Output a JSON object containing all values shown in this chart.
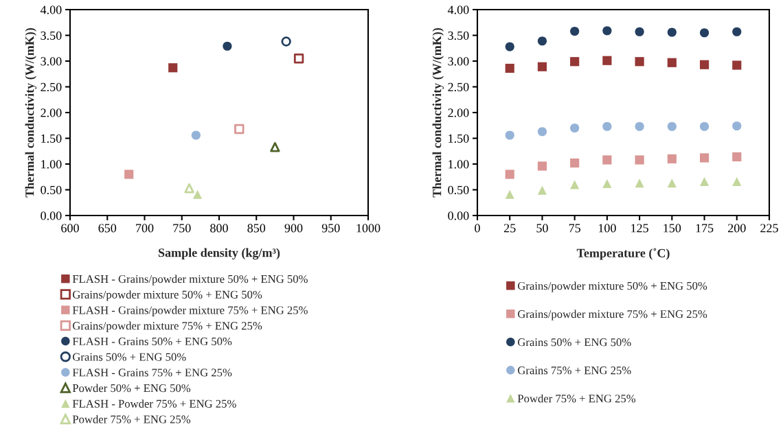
{
  "chart_data": [
    {
      "type": "scatter",
      "xlabel": "Sample density (kg/m³)",
      "ylabel": "Thermal conductivity (W/(mK))",
      "xlim": [
        600,
        1000
      ],
      "xticks": [
        600,
        650,
        700,
        750,
        800,
        850,
        900,
        950,
        1000
      ],
      "ylim": [
        0,
        4
      ],
      "yticks": [
        {
          "value": 0,
          "label": "0.00"
        },
        {
          "value": 0.5,
          "label": "0.50"
        },
        {
          "value": 1,
          "label": "1.00"
        },
        {
          "value": 1.5,
          "label": "1.50"
        },
        {
          "value": 2,
          "label": "2.00"
        },
        {
          "value": 2.5,
          "label": "2.50"
        },
        {
          "value": 3,
          "label": "3.00"
        },
        {
          "value": 3.5,
          "label": "3.50"
        },
        {
          "value": 4,
          "label": "4.00"
        }
      ],
      "grid": false,
      "legend": "bottom",
      "series": [
        {
          "name": "FLASH - Grains/powder mixture 50% + ENG 50%",
          "color": "#953735",
          "marker": "square",
          "x": [
            738
          ],
          "values": [
            2.87
          ]
        },
        {
          "name": "Grains/powder mixture 50% + ENG 50%",
          "color": "#953735",
          "marker": "square-open",
          "x": [
            907
          ],
          "values": [
            3.05
          ]
        },
        {
          "name": "FLASH - Grains/powder mixture 75% + ENG 25%",
          "color": "#d99694",
          "marker": "square",
          "x": [
            679
          ],
          "values": [
            0.8
          ]
        },
        {
          "name": "Grains/powder mixture 75% + ENG 25%",
          "color": "#d99694",
          "marker": "square-open",
          "x": [
            827
          ],
          "values": [
            1.68
          ]
        },
        {
          "name": "FLASH - Grains 50% + ENG 50%",
          "color": "#243f60",
          "marker": "circle",
          "x": [
            811
          ],
          "values": [
            3.29
          ]
        },
        {
          "name": "Grains 50% + ENG 50%",
          "color": "#243f60",
          "marker": "circle-open",
          "x": [
            890
          ],
          "values": [
            3.38
          ]
        },
        {
          "name": "FLASH - Grains 75% + ENG 25%",
          "color": "#95b3d7",
          "marker": "circle",
          "x": [
            769
          ],
          "values": [
            1.56
          ]
        },
        {
          "name": "Powder 50% + ENG 50%",
          "color": "#4f6228",
          "marker": "triangle-open",
          "x": [
            875
          ],
          "values": [
            1.33
          ]
        },
        {
          "name": "FLASH - Powder 75% + ENG 25%",
          "color": "#c3d69b",
          "marker": "triangle",
          "x": [
            771
          ],
          "values": [
            0.41
          ]
        },
        {
          "name": "Powder 75% + ENG 25%",
          "color": "#c3d69b",
          "marker": "triangle-open",
          "x": [
            760
          ],
          "values": [
            0.53
          ]
        }
      ]
    },
    {
      "type": "scatter",
      "xlabel": "Temperature (˚C)",
      "ylabel": "Thermal conductivity (W/(mK))",
      "xlim": [
        0,
        225
      ],
      "xticks": [
        0,
        25,
        50,
        75,
        100,
        125,
        150,
        175,
        200,
        225
      ],
      "ylim": [
        0,
        4
      ],
      "yticks": [
        {
          "value": 0,
          "label": "0.00"
        },
        {
          "value": 0.5,
          "label": "0.50"
        },
        {
          "value": 1,
          "label": "1.00"
        },
        {
          "value": 1.5,
          "label": "1.50"
        },
        {
          "value": 2,
          "label": "2.00"
        },
        {
          "value": 2.5,
          "label": "2.50"
        },
        {
          "value": 3,
          "label": "3.00"
        },
        {
          "value": 3.5,
          "label": "3.50"
        },
        {
          "value": 4,
          "label": "4.00"
        }
      ],
      "grid": false,
      "legend": "bottom",
      "x": [
        25,
        50,
        75,
        100,
        125,
        150,
        175,
        200
      ],
      "series": [
        {
          "name": "Grains/powder mixture 50% + ENG 50%",
          "color": "#953735",
          "marker": "square",
          "values": [
            2.86,
            2.89,
            2.99,
            3.01,
            2.99,
            2.97,
            2.93,
            2.92
          ]
        },
        {
          "name": "Grains/powder mixture 75% + ENG 25%",
          "color": "#d99694",
          "marker": "square",
          "values": [
            0.8,
            0.96,
            1.02,
            1.08,
            1.08,
            1.1,
            1.12,
            1.14
          ]
        },
        {
          "name": "Grains 50% + ENG 50%",
          "color": "#243f60",
          "marker": "circle",
          "values": [
            3.28,
            3.39,
            3.58,
            3.59,
            3.57,
            3.56,
            3.55,
            3.57
          ]
        },
        {
          "name": "Grains 75% + ENG 25%",
          "color": "#95b3d7",
          "marker": "circle",
          "values": [
            1.56,
            1.63,
            1.7,
            1.73,
            1.73,
            1.73,
            1.73,
            1.74
          ]
        },
        {
          "name": "Powder 75% + ENG 25%",
          "color": "#c3d69b",
          "marker": "triangle",
          "values": [
            0.41,
            0.49,
            0.6,
            0.62,
            0.63,
            0.63,
            0.66,
            0.66
          ]
        }
      ]
    }
  ]
}
